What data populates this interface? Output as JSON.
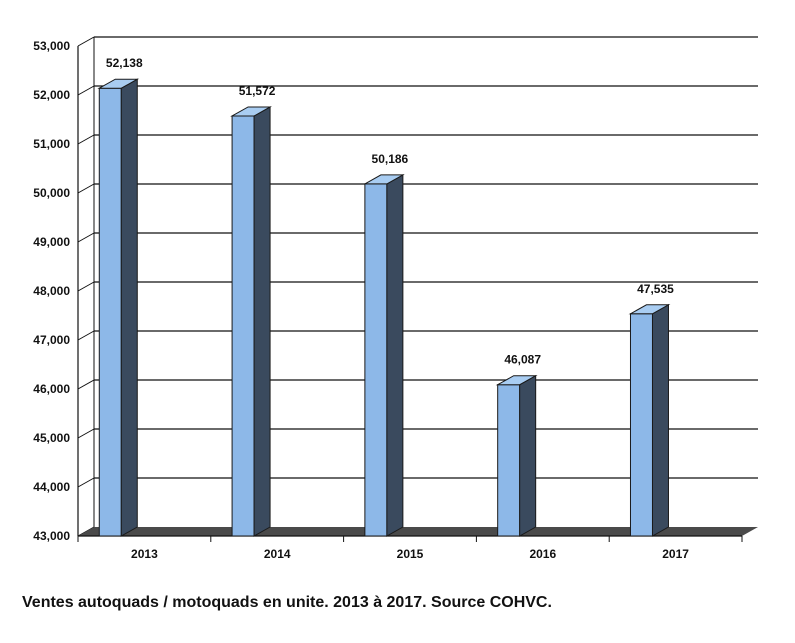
{
  "caption": "Ventes autoquads / motoquads en unite. 2013 à 2017. Source COHVC.",
  "chart_data": {
    "type": "bar",
    "categories": [
      "2013",
      "2014",
      "2015",
      "2016",
      "2017"
    ],
    "values": [
      52138,
      51572,
      50186,
      46087,
      47535
    ],
    "value_labels": [
      "52,138",
      "51,572",
      "50,186",
      "46,087",
      "47,535"
    ],
    "ylim": [
      43000,
      53000
    ],
    "yticks": [
      43000,
      44000,
      45000,
      46000,
      47000,
      48000,
      49000,
      50000,
      51000,
      52000,
      53000
    ],
    "ytick_labels": [
      "43,000",
      "44,000",
      "45,000",
      "46,000",
      "47,000",
      "48,000",
      "49,000",
      "50,000",
      "51,000",
      "52,000",
      "53,000"
    ],
    "grid": true,
    "legend": "none",
    "colors": {
      "bar_front": "#8db8e8",
      "bar_side": "#3a4a5e",
      "bar_top": "#a9cdf2",
      "floor": "#4a4a4a",
      "grid": "#111111"
    }
  }
}
